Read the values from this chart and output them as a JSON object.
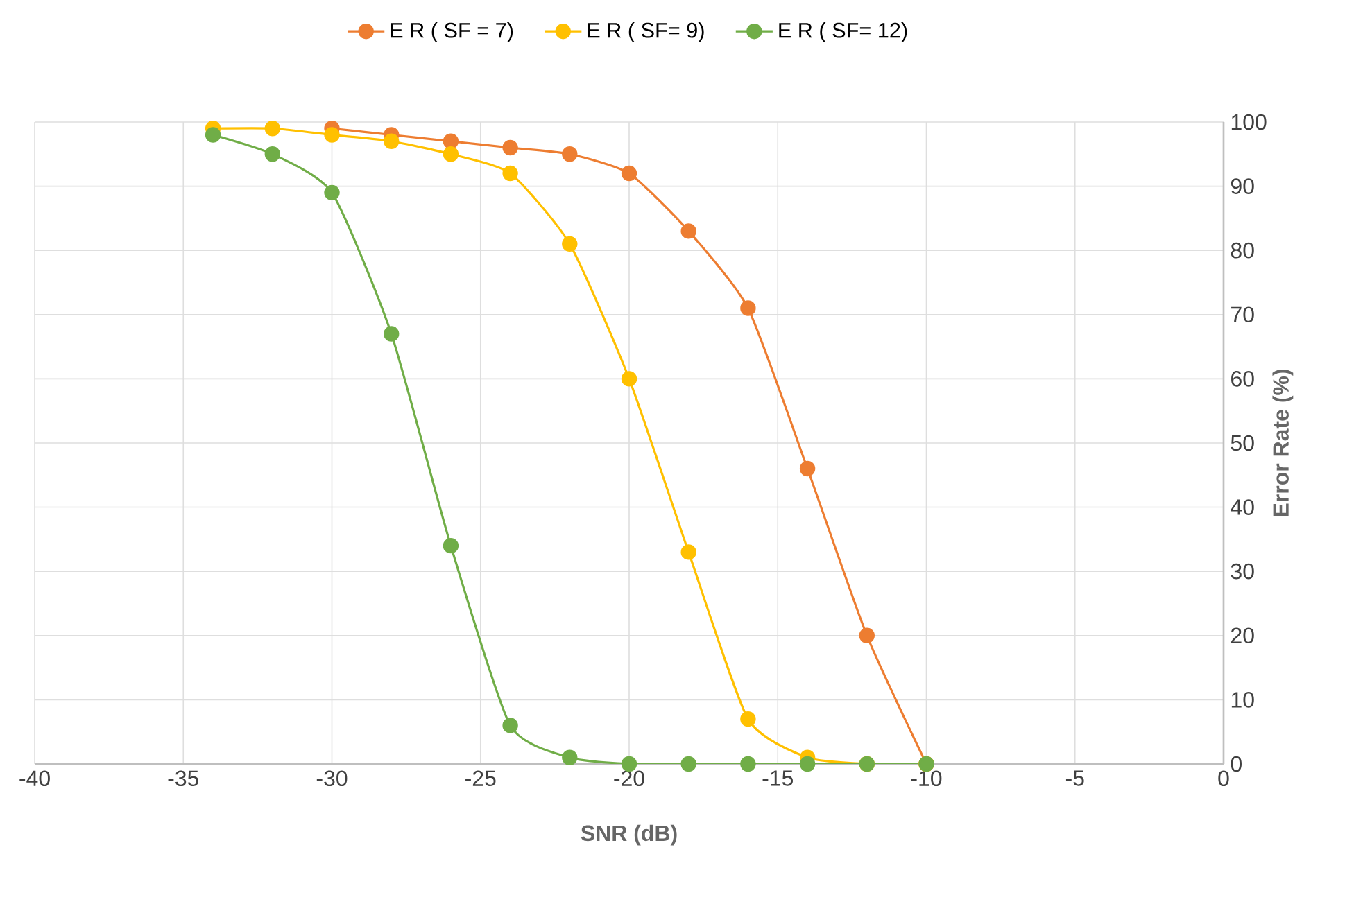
{
  "chart_data": {
    "type": "line",
    "xlabel": "SNR (dB)",
    "ylabel": "Error Rate (%)",
    "x": [
      -34,
      -32,
      -30,
      -28,
      -26,
      -24,
      -22,
      -20,
      -18,
      -16,
      -14,
      -12,
      -10
    ],
    "series": [
      {
        "name": "E R ( SF = 7)",
        "color": "#ed7d31",
        "values": [
          null,
          null,
          99,
          98,
          97,
          96,
          95,
          92,
          83,
          71,
          46,
          20,
          0
        ]
      },
      {
        "name": "E R ( SF= 9)",
        "color": "#ffc000",
        "values": [
          99,
          99,
          98,
          97,
          95,
          92,
          81,
          60,
          33,
          7,
          1,
          0,
          0
        ]
      },
      {
        "name": "E R ( SF= 12)",
        "color": "#70ad47",
        "values": [
          98,
          95,
          89,
          67,
          34,
          6,
          1,
          0,
          0,
          0,
          0,
          0,
          0
        ]
      }
    ],
    "xlim": [
      -40,
      0
    ],
    "xticks": [
      -40,
      -35,
      -30,
      -25,
      -20,
      -15,
      -10,
      -5,
      0
    ],
    "ylim": [
      0,
      100
    ],
    "yticks": [
      0,
      10,
      20,
      30,
      40,
      50,
      60,
      70,
      80,
      90,
      100
    ],
    "grid": true,
    "legend": "top",
    "marker": "circle",
    "line_style": "solid"
  }
}
